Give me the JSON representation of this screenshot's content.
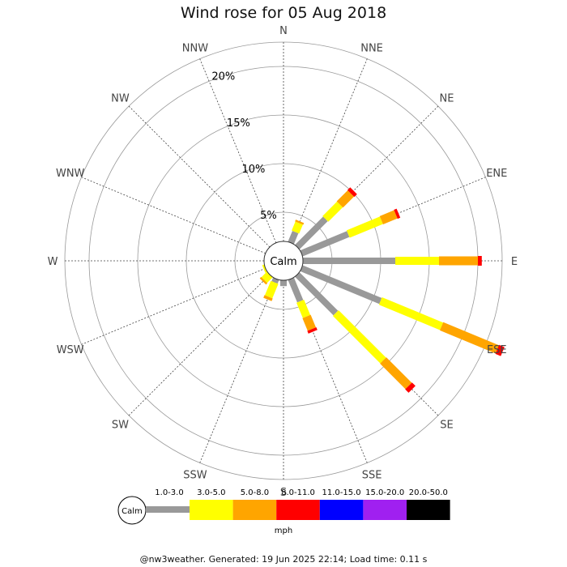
{
  "title": "Wind rose for 05 Aug 2018",
  "footer": "@nw3weather. Generated: 19 Jun 2025 22:14; Load time: 0.11 s",
  "calm_label": "Calm",
  "chart_data": {
    "type": "windrose",
    "title": "Wind rose for 05 Aug 2018",
    "directions": [
      "N",
      "NNE",
      "NE",
      "ENE",
      "E",
      "ESE",
      "SE",
      "SSE",
      "S",
      "SSW",
      "SW",
      "WSW",
      "W",
      "WNW",
      "NW",
      "NNW"
    ],
    "ring_labels": [
      "5%",
      "10%",
      "15%",
      "20%"
    ],
    "ring_values": [
      5,
      10,
      15,
      20
    ],
    "rmax": 22.5,
    "unit": "mph",
    "calm_percent": 2,
    "speed_bins": [
      {
        "label": "1.0-3.0",
        "color": "#999999"
      },
      {
        "label": "3.0-5.0",
        "color": "#ffff00"
      },
      {
        "label": "5.0-8.0",
        "color": "#ffa500"
      },
      {
        "label": "8.0-11.0",
        "color": "#ff0000"
      },
      {
        "label": "11.0-15.0",
        "color": "#0000ff"
      },
      {
        "label": "15.0-20.0",
        "color": "#a020f0"
      },
      {
        "label": "20.0-50.0",
        "color": "#000000"
      }
    ],
    "series": [
      {
        "direction": "N",
        "cumulative": []
      },
      {
        "direction": "NNE",
        "cumulative": [
          3.2,
          4.2,
          4.4
        ]
      },
      {
        "direction": "NE",
        "cumulative": [
          6.1,
          8.2,
          9.8,
          10.2
        ]
      },
      {
        "direction": "ENE",
        "cumulative": [
          7.2,
          10.9,
          12.5,
          12.8
        ]
      },
      {
        "direction": "E",
        "cumulative": [
          11.5,
          16.0,
          20.0,
          20.4
        ]
      },
      {
        "direction": "ESE",
        "cumulative": [
          10.8,
          17.6,
          23.8,
          24.4
        ]
      },
      {
        "direction": "SE",
        "cumulative": [
          7.6,
          14.5,
          18.2,
          18.7
        ]
      },
      {
        "direction": "SSE",
        "cumulative": [
          4.5,
          6.2,
          7.6,
          7.9
        ]
      },
      {
        "direction": "S",
        "cumulative": [
          2.6
        ]
      },
      {
        "direction": "SSW",
        "cumulative": [
          2.4,
          4.0,
          4.3
        ]
      },
      {
        "direction": "SW",
        "cumulative": [
          2.0,
          2.8,
          3.0
        ]
      },
      {
        "direction": "WSW",
        "cumulative": [
          1.5,
          2.2
        ]
      },
      {
        "direction": "W",
        "cumulative": [
          1.2,
          2.0
        ]
      },
      {
        "direction": "WNW",
        "cumulative": [
          1.0
        ]
      },
      {
        "direction": "NW",
        "cumulative": [
          1.0,
          1.4
        ]
      },
      {
        "direction": "NNW",
        "cumulative": [
          1.0
        ]
      }
    ]
  }
}
